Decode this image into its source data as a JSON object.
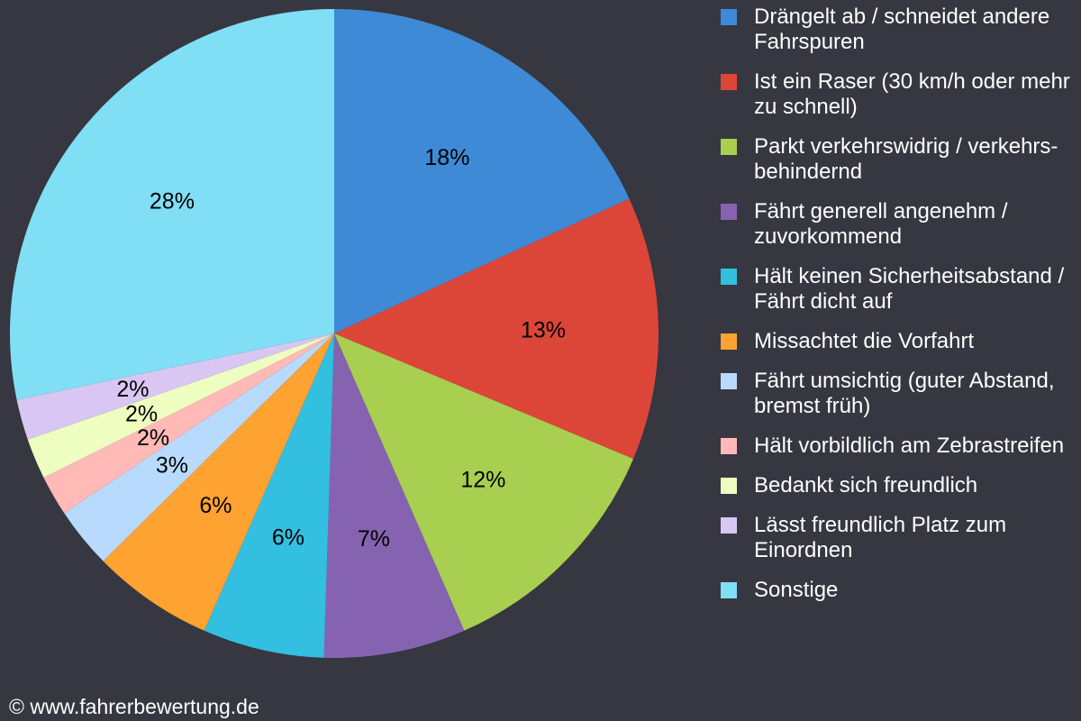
{
  "chart_data": {
    "type": "pie",
    "start_angle": "top",
    "direction": "clockwise",
    "slices": [
      {
        "name": "Drängelt ab / schneidet andere Fahrspuren",
        "value": 18,
        "label": "18%",
        "color": "#3e8ad6"
      },
      {
        "name": "Ist ein Raser (30 km/h oder mehr zu schnell)",
        "value": 13,
        "label": "13%",
        "color": "#dc4639"
      },
      {
        "name": "Parkt verkehrswidrig / verkehrs-behindernd",
        "value": 12,
        "label": "12%",
        "color": "#a8cf4f"
      },
      {
        "name": "Fährt generell angenehm / zuvorkommend",
        "value": 7,
        "label": "7%",
        "color": "#8663b1"
      },
      {
        "name": "Hält keinen Sicherheitsabstand / Fährt dicht auf",
        "value": 6,
        "label": "6%",
        "color": "#32bfe0"
      },
      {
        "name": "Missachtet die Vorfahrt",
        "value": 6,
        "label": "6%",
        "color": "#fea232"
      },
      {
        "name": "Fährt umsichtig (guter Abstand, bremst früh)",
        "value": 3,
        "label": "3%",
        "color": "#b8dafd"
      },
      {
        "name": "Hält vorbildlich am Zebrastreifen",
        "value": 2,
        "label": "2%",
        "color": "#ffbab8"
      },
      {
        "name": "Bedankt sich freundlich",
        "value": 2,
        "label": "2%",
        "color": "#eefec0"
      },
      {
        "name": "Lässt freundlich Platz zum Einordnen",
        "value": 2,
        "label": "2%",
        "color": "#d9c6f3"
      },
      {
        "name": "Sonstige",
        "value": 28,
        "label": "28%",
        "color": "#80def5"
      }
    ],
    "legend_position": "right"
  },
  "footer": "© www.fahrerbewertung.de"
}
